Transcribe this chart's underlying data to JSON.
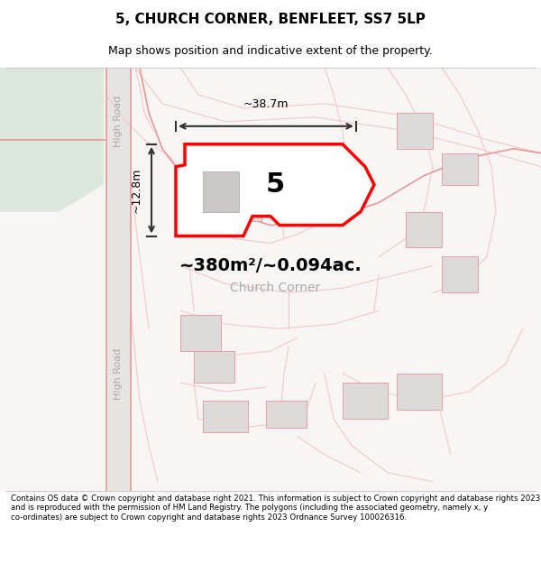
{
  "title": "5, CHURCH CORNER, BENFLEET, SS7 5LP",
  "subtitle": "Map shows position and indicative extent of the property.",
  "footer": "Contains OS data © Crown copyright and database right 2021. This information is subject to Crown copyright and database rights 2023 and is reproduced with the permission of HM Land Registry. The polygons (including the associated geometry, namely x, y co-ordinates) are subject to Crown copyright and database rights 2023 Ordnance Survey 100026316.",
  "area_text": "~380m²/~0.094ac.",
  "plot_number": "5",
  "dim_width": "~38.7m",
  "dim_height": "~12.8m",
  "label_church_corner": "Church Corner",
  "label_high_road_top": "High Road",
  "label_high_road_bottom": "High Road",
  "bg_color": "#f5f0f0",
  "map_bg": "#f8f5f5",
  "road_color": "#e8d0d0",
  "highlight_color": "#ff0000",
  "plot_fill": "#ffffff",
  "building_fill": "#d8d5d5",
  "green_area": "#e8ece8",
  "dim_color": "#333333",
  "text_color": "#888888",
  "lpink": "#f5c8c8",
  "mpink": "#e89898"
}
